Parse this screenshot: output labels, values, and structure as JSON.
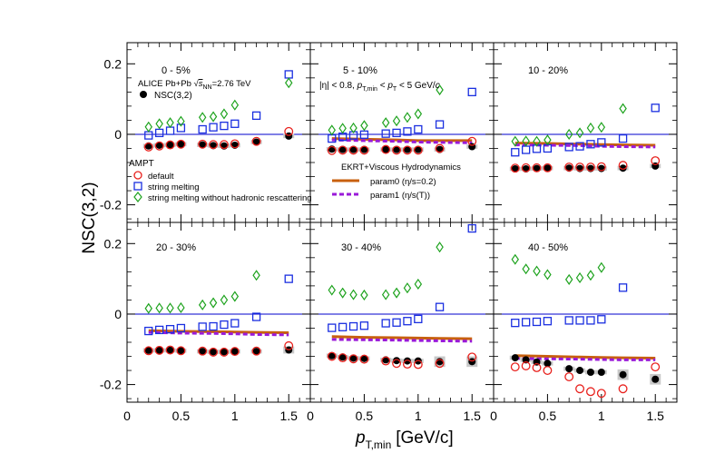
{
  "chart_data": {
    "type": "scatter",
    "ylabel": "NSC(3,2)",
    "xlabel": {
      "p": "p",
      "sub": "T,min",
      "unit": "[GeV/c]"
    },
    "xlim": [
      0,
      1.7
    ],
    "ylim": [
      -0.25,
      0.26
    ],
    "x_ticks": [
      "0",
      "0.5",
      "1",
      "1.5"
    ],
    "y_ticks": [
      "-0.2",
      "0",
      "0.2"
    ],
    "y_tick_values": [
      -0.2,
      0,
      0.2
    ],
    "x_tick_values": [
      0,
      0.5,
      1,
      1.5
    ],
    "panels": [
      {
        "label": "0 - 5%",
        "data": {
          "x": [
            0.2,
            0.3,
            0.4,
            0.5,
            0.7,
            0.8,
            0.9,
            1.0,
            1.2,
            1.5
          ],
          "nsc": [
            -0.033,
            -0.031,
            -0.03,
            -0.028,
            -0.03,
            -0.032,
            -0.033,
            -0.031,
            -0.022,
            -0.005
          ],
          "default": [
            -0.036,
            -0.033,
            -0.03,
            -0.028,
            -0.028,
            -0.029,
            -0.029,
            -0.027,
            -0.02,
            0.008
          ],
          "melting": [
            -0.003,
            0.004,
            0.01,
            0.018,
            0.014,
            0.02,
            0.024,
            0.03,
            0.053,
            0.17
          ],
          "melting_no_resc": [
            0.021,
            0.03,
            0.033,
            0.037,
            0.048,
            0.05,
            0.058,
            0.083,
            null,
            0.146
          ]
        }
      },
      {
        "label": "5 - 10%",
        "data": {
          "x": [
            0.2,
            0.3,
            0.4,
            0.5,
            0.7,
            0.8,
            0.9,
            1.0,
            1.2,
            1.5
          ],
          "nsc": [
            -0.042,
            -0.043,
            -0.043,
            -0.043,
            -0.043,
            -0.043,
            -0.043,
            -0.043,
            -0.043,
            -0.035
          ],
          "default": [
            -0.046,
            -0.045,
            -0.045,
            -0.045,
            -0.043,
            -0.045,
            -0.045,
            -0.045,
            -0.04,
            -0.02
          ],
          "melting": [
            -0.012,
            -0.007,
            -0.003,
            -0.001,
            0.002,
            0.004,
            0.008,
            0.014,
            0.028,
            0.12
          ],
          "melting_no_resc": [
            0.012,
            0.017,
            0.018,
            0.025,
            0.033,
            0.038,
            0.048,
            0.058,
            0.126,
            null
          ],
          "hydro_param0": [
            -0.012,
            -0.014,
            -0.016,
            -0.018,
            -0.018,
            -0.018
          ],
          "hydro_param1": [
            -0.016,
            -0.018,
            -0.02,
            -0.022,
            -0.023,
            -0.024
          ],
          "hydro_x": [
            0.2,
            0.5,
            0.8,
            1.0,
            1.2,
            1.5
          ]
        }
      },
      {
        "label": "10 - 20%",
        "data": {
          "x": [
            0.2,
            0.3,
            0.4,
            0.5,
            0.7,
            0.8,
            0.9,
            1.0,
            1.2,
            1.5
          ],
          "nsc": [
            -0.098,
            -0.098,
            -0.097,
            -0.096,
            -0.096,
            -0.097,
            -0.097,
            -0.097,
            -0.096,
            -0.09
          ],
          "default": [
            -0.096,
            -0.095,
            -0.095,
            -0.095,
            -0.093,
            -0.093,
            -0.093,
            -0.092,
            -0.088,
            -0.075
          ],
          "melting": [
            -0.051,
            -0.044,
            -0.041,
            -0.04,
            -0.036,
            -0.034,
            -0.028,
            -0.023,
            -0.012,
            0.075
          ],
          "melting_no_resc": [
            -0.02,
            -0.019,
            -0.02,
            -0.016,
            0.0,
            0.004,
            0.018,
            0.02,
            0.073,
            null
          ],
          "hydro_param0": [
            -0.025,
            -0.026,
            -0.028,
            -0.029,
            -0.03,
            -0.031
          ],
          "hydro_param1": [
            -0.03,
            -0.031,
            -0.032,
            -0.034,
            -0.035,
            -0.036
          ],
          "hydro_x": [
            0.2,
            0.5,
            0.8,
            1.0,
            1.2,
            1.5
          ]
        }
      },
      {
        "label": "20 - 30%",
        "data": {
          "x": [
            0.2,
            0.3,
            0.4,
            0.5,
            0.7,
            0.8,
            0.9,
            1.0,
            1.2,
            1.5
          ],
          "nsc": [
            -0.103,
            -0.103,
            -0.103,
            -0.104,
            -0.106,
            -0.107,
            -0.107,
            -0.106,
            -0.106,
            -0.102
          ],
          "default": [
            -0.104,
            -0.103,
            -0.102,
            -0.104,
            -0.105,
            -0.108,
            -0.108,
            -0.106,
            -0.105,
            -0.09
          ],
          "melting": [
            -0.048,
            -0.045,
            -0.043,
            -0.04,
            -0.036,
            -0.035,
            -0.03,
            -0.026,
            -0.008,
            0.1
          ],
          "melting_no_resc": [
            0.016,
            0.017,
            0.017,
            0.018,
            0.026,
            0.032,
            0.04,
            0.05,
            0.11,
            null
          ],
          "hydro_param0": [
            -0.047,
            -0.049,
            -0.05,
            -0.051,
            -0.052,
            -0.053
          ],
          "hydro_param1": [
            -0.052,
            -0.054,
            -0.055,
            -0.056,
            -0.058,
            -0.059
          ],
          "hydro_x": [
            0.2,
            0.5,
            0.8,
            1.0,
            1.2,
            1.5
          ]
        }
      },
      {
        "label": "30 - 40%",
        "data": {
          "x": [
            0.2,
            0.3,
            0.4,
            0.5,
            0.7,
            0.8,
            0.9,
            1.0,
            1.2,
            1.5
          ],
          "nsc": [
            -0.118,
            -0.122,
            -0.125,
            -0.126,
            -0.13,
            -0.132,
            -0.133,
            -0.133,
            -0.135,
            -0.135
          ],
          "default": [
            -0.12,
            -0.124,
            -0.127,
            -0.128,
            -0.133,
            -0.14,
            -0.142,
            -0.143,
            -0.14,
            -0.122
          ],
          "melting": [
            -0.039,
            -0.037,
            -0.035,
            -0.033,
            -0.026,
            -0.024,
            -0.02,
            -0.014,
            0.02,
            0.243
          ],
          "melting_no_resc": [
            0.068,
            0.06,
            0.055,
            0.054,
            0.055,
            0.06,
            0.074,
            0.085,
            0.19,
            null
          ],
          "hydro_param0": [
            -0.064,
            -0.066,
            -0.067,
            -0.068,
            -0.069,
            -0.07
          ],
          "hydro_param1": [
            -0.072,
            -0.073,
            -0.074,
            -0.075,
            -0.076,
            -0.077
          ],
          "hydro_x": [
            0.2,
            0.5,
            0.8,
            1.0,
            1.2,
            1.5
          ]
        }
      },
      {
        "label": "40 - 50%",
        "data": {
          "x": [
            0.2,
            0.3,
            0.4,
            0.5,
            0.7,
            0.8,
            0.9,
            1.0,
            1.2,
            1.5
          ],
          "nsc": [
            -0.124,
            -0.13,
            -0.136,
            -0.14,
            -0.155,
            -0.16,
            -0.165,
            -0.165,
            -0.172,
            -0.185
          ],
          "default": [
            -0.15,
            -0.147,
            -0.152,
            -0.16,
            -0.178,
            -0.212,
            -0.22,
            -0.225,
            -0.212,
            -0.15
          ],
          "melting": [
            -0.025,
            -0.023,
            -0.022,
            -0.02,
            -0.018,
            -0.018,
            -0.018,
            -0.015,
            0.075,
            null
          ],
          "melting_no_resc": [
            0.155,
            0.128,
            0.122,
            0.112,
            0.098,
            0.103,
            0.11,
            0.132,
            null,
            null
          ],
          "hydro_param0": [
            -0.118,
            -0.12,
            -0.122,
            -0.123,
            -0.124,
            -0.125
          ],
          "hydro_param1": [
            -0.126,
            -0.127,
            -0.128,
            -0.129,
            -0.13,
            -0.13
          ],
          "hydro_x": [
            0.2,
            0.5,
            0.8,
            1.0,
            1.2,
            1.5
          ]
        }
      }
    ],
    "legend_alice": {
      "line1_pre": "ALICE Pb+Pb ",
      "line1_sqrt": "s",
      "line1_sub": "NN",
      "line1_post": "=2.76 TeV",
      "nsc": "NSC(3,2)"
    },
    "legend_ampt": {
      "title": "AMPT",
      "default": "default",
      "melting": "string melting",
      "melting_no_resc": "string melting without hadronic rescattering"
    },
    "kinematics": "|η| < 0.8, p_T,min < p_T < 5 GeV/c",
    "legend_hydro": {
      "title": "EKRT+Viscous Hydrodynamics",
      "param0": "param0 (η/s=0.2)",
      "param1": "param1 (η/s(T))"
    },
    "colors": {
      "nsc": "#000000",
      "default": "#e8201c",
      "melting": "#1a2fe0",
      "melting_no_resc": "#1ea31e",
      "param0": "#c8600e",
      "param1": "#9a1ad8",
      "zero_line": "#0000cc",
      "syst_box": "#c8c8c8"
    }
  }
}
